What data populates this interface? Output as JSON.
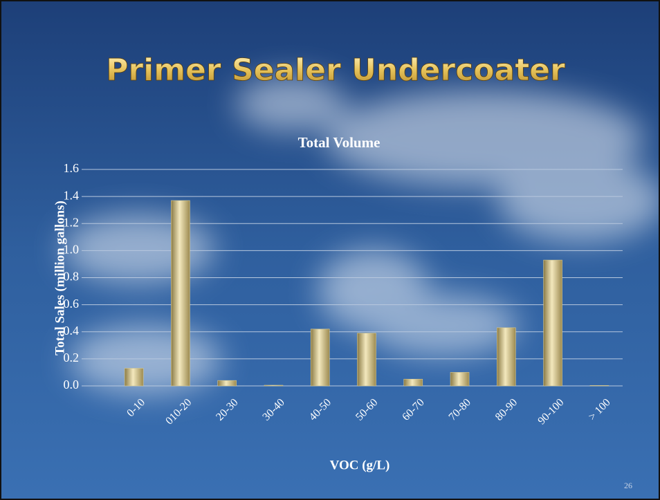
{
  "chart_data": {
    "type": "bar",
    "slide_title": "Primer Sealer Undercoater",
    "title": "Total Volume",
    "x_label": "VOC (g/L)",
    "y_label": "Total Sales (million gallons)",
    "slide_number": "26",
    "categories": [
      "0-10",
      "010-20",
      "20-30",
      "30-40",
      "40-50",
      "50-60",
      "60-70",
      "70-80",
      "80-90",
      "90-100",
      "> 100"
    ],
    "values": [
      0.13,
      1.37,
      0.04,
      0.005,
      0.42,
      0.39,
      0.05,
      0.1,
      0.43,
      0.93,
      0.003
    ],
    "color": "#d8c98e",
    "ylim": [
      0,
      1.6
    ],
    "yticks": [
      {
        "value": 0,
        "label": "0.0"
      },
      0.2,
      0.4,
      0.6,
      0.8,
      {
        "value": 1,
        "label": "1.0"
      },
      1.2,
      1.4,
      1.6
    ],
    "grid": true
  }
}
